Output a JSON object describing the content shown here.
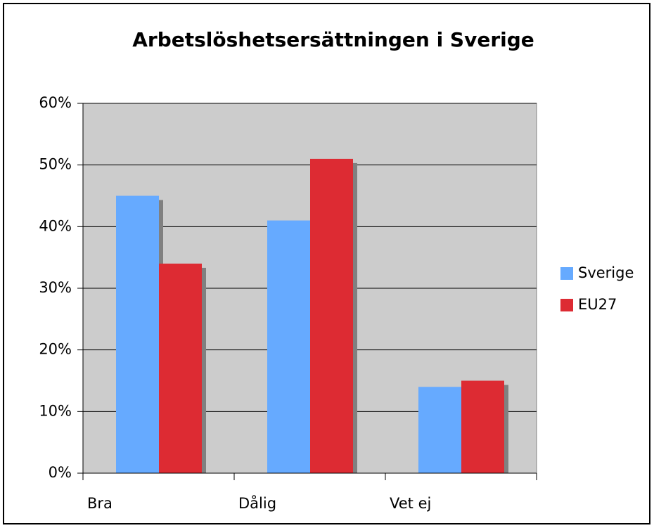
{
  "chart_data": {
    "type": "bar",
    "title": "Arbetslöshetsersättningen i Sverige",
    "categories": [
      "Bra",
      "Dålig",
      "Vet ej"
    ],
    "series": [
      {
        "name": "Sverige",
        "color": "#66aaff",
        "values": [
          45,
          41,
          14
        ]
      },
      {
        "name": "EU27",
        "color": "#dd2b33",
        "values": [
          34,
          51,
          15
        ]
      }
    ],
    "ylim": [
      0,
      60
    ],
    "yticks": [
      {
        "value": 0,
        "label": "0%"
      },
      {
        "value": 10,
        "label": "10%"
      },
      {
        "value": 20,
        "label": "20%"
      },
      {
        "value": 30,
        "label": "30%"
      },
      {
        "value": 40,
        "label": "40%"
      },
      {
        "value": 50,
        "label": "50%"
      },
      {
        "value": 60,
        "label": "60%"
      }
    ],
    "grid": true,
    "legend": "right"
  }
}
